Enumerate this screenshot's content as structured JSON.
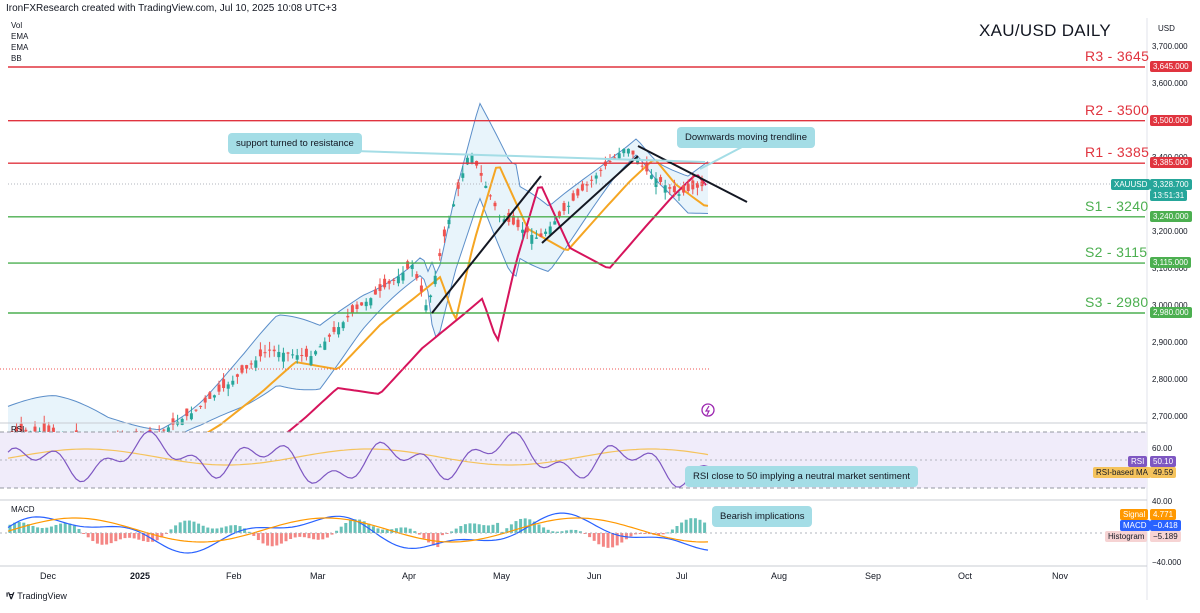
{
  "header": {
    "attribution": "IronFXResearch created with TradingView.com, Jul 10, 2025 10:08 UTC+3"
  },
  "legend": {
    "items": [
      "Vol",
      "EMA",
      "EMA",
      "BB"
    ]
  },
  "chart_title": "XAU/USD DAILY",
  "currency": "USD",
  "colors": {
    "resistance": "#e0343f",
    "support": "#4caf50",
    "ema_fast": "#f5a623",
    "ema_slow": "#d6145c",
    "bb": "#5b8ec9",
    "bb_fill": "#e8f4fb",
    "candle_up": "#26a69a",
    "candle_down": "#ef5350",
    "rsi": "#7e57c2",
    "rsi_ma": "#f5c35c",
    "rsi_band": "#f0ecfa",
    "macd": "#2962ff",
    "signal": "#ff9800",
    "callout": "#a4dde6"
  },
  "levels": [
    {
      "name": "R3",
      "label": "R3 - 3645",
      "badge": "3,645.000",
      "value": 3645,
      "type": "resistance"
    },
    {
      "name": "R2",
      "label": "R2 - 3500",
      "badge": "3,500.000",
      "value": 3500,
      "type": "resistance"
    },
    {
      "name": "R1",
      "label": "R1 - 3385",
      "badge": "3,385.000",
      "value": 3385,
      "type": "resistance"
    },
    {
      "name": "S1",
      "label": "S1 - 3240",
      "badge": "3,240.000",
      "value": 3240,
      "type": "support"
    },
    {
      "name": "S2",
      "label": "S2 - 3115",
      "badge": "3,115.000",
      "value": 3115,
      "type": "support"
    },
    {
      "name": "S3",
      "label": "S3 - 2980",
      "badge": "2,980.000",
      "value": 2980,
      "type": "support"
    }
  ],
  "price_axis": {
    "ticks": [
      "3,700.000",
      "3,600.000",
      "3,400.000",
      "3,200.000",
      "3,100.000",
      "3,000.000",
      "2,900.000",
      "2,800.000",
      "2,700.000"
    ],
    "current": {
      "symbol": "XAUUSD",
      "price": "3,328.700",
      "countdown": "13:51:31"
    }
  },
  "callouts": {
    "support_resistance": "support turned to resistance",
    "trendline": "Downwards moving trendline",
    "rsi": "RSI close to 50 implying a neutral market sentiment",
    "macd": "Bearish implications"
  },
  "rsi_panel": {
    "label": "RSI",
    "tick_60": "60.00",
    "tick_40": "40.00",
    "rsi_name": "RSI",
    "rsi_value": "50.10",
    "ma_name": "RSI-based MA",
    "ma_value": "49.59"
  },
  "macd_panel": {
    "label": "MACD",
    "signal_name": "Signal",
    "signal_value": "4.771",
    "macd_name": "MACD",
    "macd_value": "−0.418",
    "hist_name": "Histogram",
    "hist_value": "−5.189",
    "tick_low": "−40.000"
  },
  "time_axis": {
    "months": [
      "Dec",
      "2025",
      "Feb",
      "Mar",
      "Apr",
      "May",
      "Jun",
      "Jul",
      "Aug",
      "Sep",
      "Oct",
      "Nov"
    ]
  },
  "footer": {
    "brand": "TradingView"
  },
  "chart_data": {
    "type": "line",
    "title": "XAU/USD DAILY",
    "ylim": [
      2680,
      3740
    ],
    "trend": {
      "x": [
        "2024-12-02",
        "2024-12-20",
        "2025-01-06",
        "2025-01-20",
        "2025-02-03",
        "2025-02-14",
        "2025-02-28",
        "2025-03-14",
        "2025-03-28",
        "2025-04-03",
        "2025-04-08",
        "2025-04-14",
        "2025-04-22",
        "2025-05-02",
        "2025-05-15",
        "2025-05-27",
        "2025-06-05",
        "2025-06-13",
        "2025-06-20",
        "2025-06-30",
        "2025-07-10"
      ],
      "close": [
        2660,
        2630,
        2640,
        2710,
        2800,
        2880,
        2860,
        2980,
        3070,
        3110,
        2990,
        3200,
        3420,
        3240,
        3180,
        3290,
        3370,
        3430,
        3360,
        3300,
        3328.7
      ]
    }
  }
}
